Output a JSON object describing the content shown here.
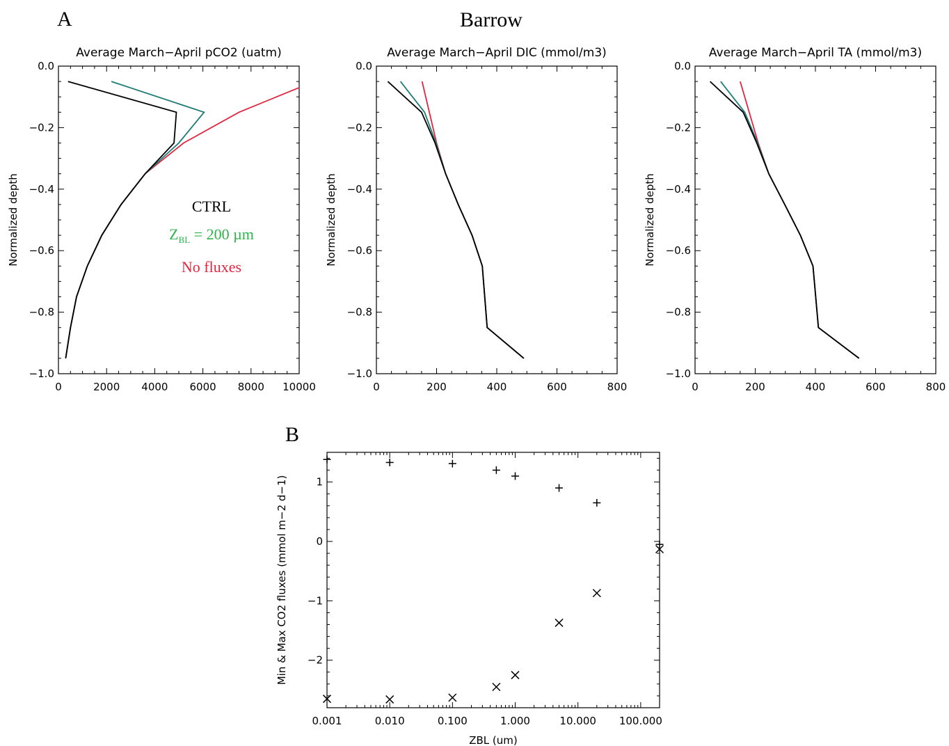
{
  "figure": {
    "panel_a_letter": "A",
    "panel_b_letter": "B",
    "title": "Barrow"
  },
  "legend": {
    "ctrl": {
      "label": "CTRL",
      "color": "#000000"
    },
    "zbl": {
      "label_main": "Z",
      "label_sub": "BL",
      "label_rest": " = 200 µm",
      "color": "#2db34a"
    },
    "nofluxes": {
      "label": "No fluxes",
      "color": "#e0263f"
    }
  },
  "series_colors": {
    "ctrl": "#000000",
    "zbl": "#1e7b78",
    "nofluxes": "#e0263f"
  },
  "chart_data": [
    {
      "type": "line",
      "title": "Average March−April pCO2 (uatm)",
      "xlabel": "",
      "ylabel": "Normalized depth",
      "xlim": [
        0,
        10000
      ],
      "ylim": [
        -1.0,
        0.0
      ],
      "xticks": [
        "0",
        "2000",
        "4000",
        "6000",
        "8000",
        "10000"
      ],
      "xtick_values": [
        0,
        2000,
        4000,
        6000,
        8000,
        10000
      ],
      "yticks": [
        "0.0",
        "−0.2",
        "−0.4",
        "−0.6",
        "−0.8",
        "−1.0"
      ],
      "ytick_values": [
        0.0,
        -0.2,
        -0.4,
        -0.6,
        -0.8,
        -1.0
      ],
      "grid": false,
      "series": [
        {
          "key": "nofluxes",
          "x": [
            300,
            500,
            750,
            1200,
            1800,
            2600,
            3600,
            5200,
            7500,
            10000
          ],
          "y": [
            -0.95,
            -0.85,
            -0.75,
            -0.65,
            -0.55,
            -0.45,
            -0.35,
            -0.25,
            -0.15,
            -0.07
          ]
        },
        {
          "key": "zbl",
          "x": [
            300,
            500,
            750,
            1200,
            1800,
            2600,
            3600,
            5000,
            6050,
            2200
          ],
          "y": [
            -0.95,
            -0.85,
            -0.75,
            -0.65,
            -0.55,
            -0.45,
            -0.35,
            -0.25,
            -0.15,
            -0.05
          ]
        },
        {
          "key": "ctrl",
          "x": [
            300,
            500,
            750,
            1200,
            1800,
            2600,
            3600,
            4800,
            4900,
            400
          ],
          "y": [
            -0.95,
            -0.85,
            -0.75,
            -0.65,
            -0.55,
            -0.45,
            -0.35,
            -0.25,
            -0.15,
            -0.05
          ]
        }
      ]
    },
    {
      "type": "line",
      "title": "Average March−April DIC (mmol/m3)",
      "xlabel": "",
      "ylabel": "Normalized depth",
      "xlim": [
        0,
        800
      ],
      "ylim": [
        -1.0,
        0.0
      ],
      "xticks": [
        "0",
        "200",
        "400",
        "600",
        "800"
      ],
      "xtick_values": [
        0,
        200,
        400,
        600,
        800
      ],
      "yticks": [
        "0.0",
        "−0.2",
        "−0.4",
        "−0.6",
        "−0.8",
        "−1.0"
      ],
      "ytick_values": [
        0.0,
        -0.2,
        -0.4,
        -0.6,
        -0.8,
        -1.0
      ],
      "grid": false,
      "series": [
        {
          "key": "nofluxes",
          "x": [
            490,
            368,
            352,
            318,
            272,
            230,
            200,
            152
          ],
          "y": [
            -0.95,
            -0.85,
            -0.65,
            -0.55,
            -0.45,
            -0.35,
            -0.25,
            -0.05
          ]
        },
        {
          "key": "zbl",
          "x": [
            490,
            368,
            352,
            318,
            272,
            230,
            198,
            160,
            80
          ],
          "y": [
            -0.95,
            -0.85,
            -0.65,
            -0.55,
            -0.45,
            -0.35,
            -0.25,
            -0.15,
            -0.05
          ]
        },
        {
          "key": "ctrl",
          "x": [
            490,
            368,
            352,
            318,
            272,
            230,
            195,
            150,
            38
          ],
          "y": [
            -0.95,
            -0.85,
            -0.65,
            -0.55,
            -0.45,
            -0.35,
            -0.25,
            -0.15,
            -0.05
          ]
        }
      ]
    },
    {
      "type": "line",
      "title": "Average March−April TA (mmol/m3)",
      "xlabel": "",
      "ylabel": "Normalized depth",
      "xlim": [
        0,
        800
      ],
      "ylim": [
        -1.0,
        0.0
      ],
      "xticks": [
        "0",
        "200",
        "400",
        "600",
        "800"
      ],
      "xtick_values": [
        0,
        200,
        400,
        600,
        800
      ],
      "yticks": [
        "0.0",
        "−0.2",
        "−0.4",
        "−0.6",
        "−0.8",
        "−1.0"
      ],
      "ytick_values": [
        0.0,
        -0.2,
        -0.4,
        -0.6,
        -0.8,
        -1.0
      ],
      "grid": false,
      "series": [
        {
          "key": "nofluxes",
          "x": [
            545,
            410,
            392,
            350,
            298,
            245,
            210,
            150
          ],
          "y": [
            -0.95,
            -0.85,
            -0.65,
            -0.55,
            -0.45,
            -0.35,
            -0.25,
            -0.05
          ]
        },
        {
          "key": "zbl",
          "x": [
            545,
            410,
            392,
            350,
            298,
            245,
            208,
            165,
            85
          ],
          "y": [
            -0.95,
            -0.85,
            -0.65,
            -0.55,
            -0.45,
            -0.35,
            -0.25,
            -0.15,
            -0.05
          ]
        },
        {
          "key": "ctrl",
          "x": [
            545,
            410,
            392,
            350,
            298,
            245,
            205,
            160,
            50
          ],
          "y": [
            -0.95,
            -0.85,
            -0.65,
            -0.55,
            -0.45,
            -0.35,
            -0.25,
            -0.15,
            -0.05
          ]
        }
      ]
    },
    {
      "type": "scatter",
      "title": "",
      "xlabel": "ZBL (um)",
      "ylabel": "Min & Max CO2 fluxes (mmol m−2 d−1)",
      "xscale": "log",
      "xlim": [
        0.001,
        200
      ],
      "ylim": [
        -2.8,
        1.5
      ],
      "xticks": [
        "0.001",
        "0.010",
        "0.100",
        "1.000",
        "10.000",
        "100.000"
      ],
      "xtick_values": [
        0.001,
        0.01,
        0.1,
        1,
        10,
        100
      ],
      "yticks": [
        "1",
        "0",
        "−1",
        "−2"
      ],
      "ytick_values": [
        1,
        0,
        -1,
        -2
      ],
      "grid": false,
      "series": [
        {
          "marker": "+",
          "x": [
            0.001,
            0.01,
            0.1,
            0.5,
            1,
            5,
            20,
            200
          ],
          "y": [
            1.38,
            1.33,
            1.31,
            1.2,
            1.1,
            0.9,
            0.65,
            -0.05
          ]
        },
        {
          "marker": "x",
          "x": [
            0.001,
            0.01,
            0.1,
            0.5,
            1,
            5,
            20,
            200
          ],
          "y": [
            -2.65,
            -2.66,
            -2.63,
            -2.45,
            -2.25,
            -1.37,
            -0.87,
            -0.13
          ]
        }
      ]
    }
  ]
}
